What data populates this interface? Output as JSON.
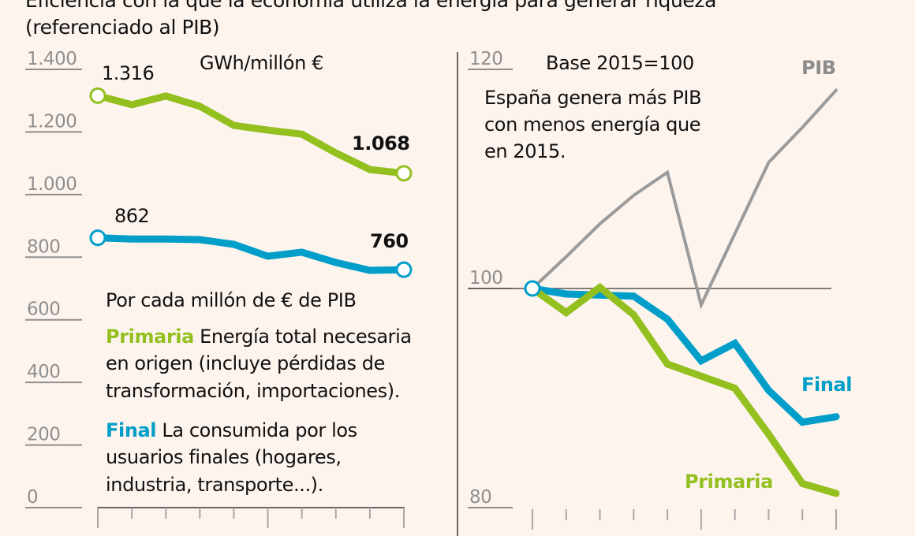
{
  "title": {
    "line1": "Eficiencia con la que la economía utiliza la energía para generar riqueza",
    "line2": "(referenciado al PIB)"
  },
  "colors": {
    "primaria": "#93c01f",
    "final": "#009ec9",
    "pib": "#9b9b9b",
    "axis": "#8f8f8f",
    "background": "#fdf4ee"
  },
  "chart_data": [
    {
      "type": "line",
      "unit": "GWh/millón €",
      "ylim": [
        0,
        1400
      ],
      "yticks": [
        0,
        200,
        400,
        600,
        800,
        1000,
        1200,
        1400
      ],
      "ytick_labels": [
        "0",
        "200",
        "400",
        "600",
        "800",
        "1.000",
        "1.200",
        "1.400"
      ],
      "x_count": 10,
      "x_major_ticks": [
        0,
        5,
        9
      ],
      "series": [
        {
          "name": "Primaria",
          "values": [
            1316,
            1287,
            1315,
            1282,
            1221,
            1206,
            1193,
            1133,
            1080,
            1068
          ],
          "start_label": "1.316",
          "end_label": "1.068"
        },
        {
          "name": "Final",
          "values": [
            862,
            858,
            858,
            856,
            841,
            803,
            816,
            783,
            758,
            760
          ],
          "start_label": "862",
          "end_label": "760"
        }
      ],
      "annotations": {
        "header": "Por cada millón de € de PIB",
        "primaria_key": "Primaria",
        "primaria_lines": [
          " Energía total necesaria",
          "en origen (incluye pérdidas de",
          "transformación, importaciones)."
        ],
        "final_key": "Final",
        "final_lines": [
          " La consumida por los",
          "usuarios finales (hogares,",
          "industria, transporte...)."
        ]
      }
    },
    {
      "type": "line",
      "unit": "Base 2015=100",
      "ylim": [
        80,
        120
      ],
      "yticks": [
        80,
        100,
        120
      ],
      "ytick_labels": [
        "80",
        "100",
        "120"
      ],
      "reference_line": 100,
      "x_count": 10,
      "x_major_ticks": [
        0,
        5,
        9
      ],
      "series": [
        {
          "name": "PIB",
          "values": [
            100,
            102.9,
            105.9,
            108.5,
            110.6,
            98.5,
            105.0,
            111.5,
            114.7,
            118.1
          ]
        },
        {
          "name": "Final",
          "values": [
            100,
            99.5,
            99.4,
            99.3,
            97.2,
            93.4,
            95.0,
            90.7,
            87.8,
            88.3
          ]
        },
        {
          "name": "Primaria",
          "values": [
            100,
            97.8,
            100.1,
            97.6,
            93.1,
            92.0,
            90.9,
            86.7,
            82.2,
            81.3
          ]
        }
      ],
      "annotation": [
        "España genera más PIB",
        "con menos energía que",
        "en 2015."
      ]
    }
  ]
}
